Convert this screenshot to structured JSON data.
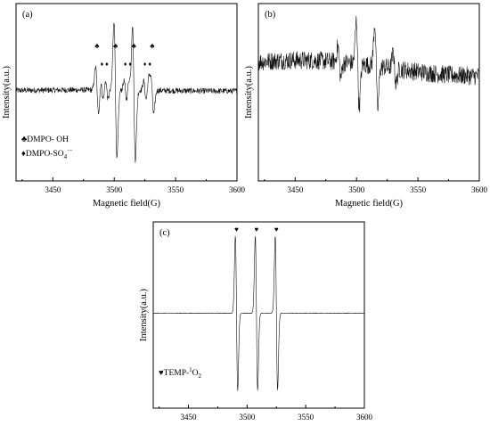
{
  "chart_data": [
    {
      "panel_label": "(a)",
      "type": "line",
      "xlabel": "Magnetic field(G)",
      "ylabel": "Intensity(a.u.)",
      "xlim": [
        3420,
        3600
      ],
      "xticks": [
        3450,
        3500,
        3550,
        3600
      ],
      "ylim": [
        -1,
        1
      ],
      "markers": [
        {
          "symbol": "♣",
          "x": 3486
        },
        {
          "symbol": "♦",
          "x": 3490
        },
        {
          "symbol": "♦",
          "x": 3494
        },
        {
          "symbol": "♣",
          "x": 3501
        },
        {
          "symbol": "♦",
          "x": 3509
        },
        {
          "symbol": "♦",
          "x": 3513
        },
        {
          "symbol": "♣",
          "x": 3516
        },
        {
          "symbol": "♦",
          "x": 3525
        },
        {
          "symbol": "♦",
          "x": 3529
        },
        {
          "symbol": "♣",
          "x": 3531
        }
      ],
      "legend": [
        {
          "symbol": "♣",
          "text": "DMPO- OH"
        },
        {
          "symbol": "♦",
          "text": "DMPO-SO",
          "subscript": "4",
          "superscript": "·−"
        }
      ],
      "legend_position": "bottom-left",
      "series": [
        {
          "lines": [
            {
              "x": 3486,
              "amp": 0.3,
              "w": 1.2
            },
            {
              "x": 3501,
              "amp": 0.9,
              "w": 1.2
            },
            {
              "x": 3516,
              "amp": 0.9,
              "w": 1.2
            },
            {
              "x": 3531,
              "amp": 0.3,
              "w": 1.2
            },
            {
              "x": 3490,
              "amp": 0.12,
              "w": 1.0
            },
            {
              "x": 3494,
              "amp": 0.12,
              "w": 1.0
            },
            {
              "x": 3509,
              "amp": 0.12,
              "w": 1.0
            },
            {
              "x": 3513,
              "amp": 0.12,
              "w": 1.0
            },
            {
              "x": 3525,
              "amp": 0.12,
              "w": 1.0
            },
            {
              "x": 3529,
              "amp": 0.12,
              "w": 1.0
            }
          ],
          "noise": 0.04,
          "baseline": 0.05
        }
      ]
    },
    {
      "panel_label": "(b)",
      "type": "line",
      "xlabel": "Magnetic field(G)",
      "ylabel": "Intensity(a.u.)",
      "xlim": [
        3420,
        3600
      ],
      "xticks": [
        3450,
        3500,
        3550,
        3600
      ],
      "ylim": [
        -1,
        1
      ],
      "series": [
        {
          "lines": [
            {
              "x": 3486,
              "amp": 0.2,
              "w": 1.2
            },
            {
              "x": 3501,
              "amp": 0.55,
              "w": 1.2
            },
            {
              "x": 3516,
              "amp": 0.55,
              "w": 1.2
            },
            {
              "x": 3531,
              "amp": 0.2,
              "w": 1.2
            }
          ],
          "noise": 0.13,
          "baseline": 0.28
        }
      ]
    },
    {
      "panel_label": "(c)",
      "type": "line",
      "xlabel": "Magnetic field(G)",
      "ylabel": "Intensity(a.u.)",
      "xlim": [
        3420,
        3600
      ],
      "xticks": [
        3450,
        3500,
        3550,
        3600
      ],
      "ylim": [
        -1,
        1
      ],
      "markers": [
        {
          "symbol": "♥",
          "x": 3491
        },
        {
          "symbol": "♥",
          "x": 3508
        },
        {
          "symbol": "♥",
          "x": 3525
        }
      ],
      "legend": [
        {
          "symbol": "♥",
          "text": "TEMP-",
          "superscript": "1",
          "main": "O",
          "subscript": "2"
        }
      ],
      "legend_position": "bottom-left",
      "series": [
        {
          "lines": [
            {
              "x": 3491,
              "amp": 0.95,
              "w": 1.0
            },
            {
              "x": 3508,
              "amp": 0.95,
              "w": 1.0
            },
            {
              "x": 3525,
              "amp": 0.95,
              "w": 1.0
            }
          ],
          "noise": 0.004,
          "baseline": 0.0
        }
      ]
    }
  ]
}
